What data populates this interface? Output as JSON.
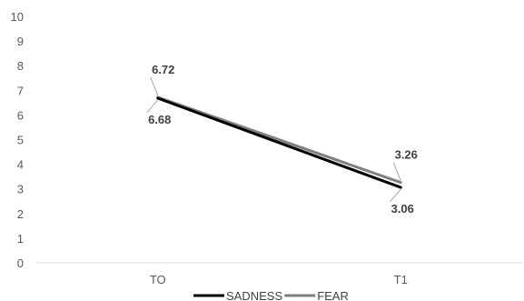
{
  "chart_data": {
    "type": "line",
    "title": "",
    "xlabel": "",
    "ylabel": "",
    "categories": [
      "TO",
      "T1"
    ],
    "ylim": [
      0,
      10
    ],
    "yticks": [
      0,
      1,
      2,
      3,
      4,
      5,
      6,
      7,
      8,
      9,
      10
    ],
    "grid": false,
    "legend_position": "bottom",
    "series": [
      {
        "name": "SADNESS",
        "values": [
          6.68,
          3.06
        ],
        "labels": [
          "6.68",
          "3.06"
        ],
        "color": "#000000"
      },
      {
        "name": "FEAR",
        "values": [
          6.72,
          3.26
        ],
        "labels": [
          "6.72",
          "3.26"
        ],
        "color": "#808080"
      }
    ]
  }
}
